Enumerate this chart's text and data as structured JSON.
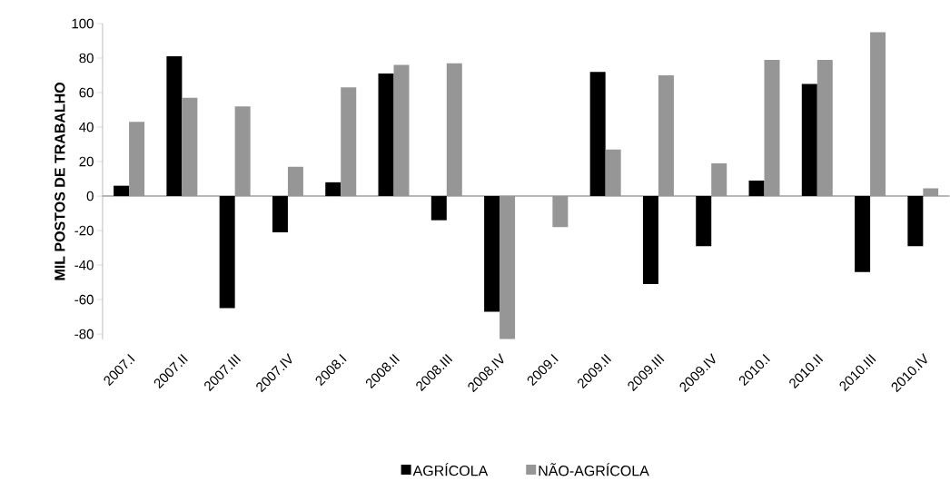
{
  "chart_data": {
    "type": "bar",
    "ylabel": "MIL POSTOS DE TRABALHO",
    "categories": [
      "2007.I",
      "2007.II",
      "2007.III",
      "2007.IV",
      "2008.I",
      "2008.II",
      "2008.III",
      "2008.IV",
      "2009.I",
      "2009.II",
      "2009.III",
      "2009.IV",
      "2010.I",
      "2010.II",
      "2010.III",
      "2010.IV"
    ],
    "series": [
      {
        "name": "AGRÍCOLA",
        "color": "#000000",
        "values": [
          6,
          81,
          -65,
          -21,
          8,
          71,
          -14,
          -67,
          null,
          72,
          -51,
          -29,
          9,
          65,
          -44,
          -29
        ]
      },
      {
        "name": "NÃO-AGRÍCOLA",
        "color": "#969696",
        "values": [
          43,
          57,
          52,
          17,
          63,
          76,
          77,
          -83,
          -18,
          27,
          70,
          19,
          79,
          79,
          95,
          4.5
        ]
      }
    ],
    "ylim": [
      -83,
      100
    ],
    "yticks": [
      -80,
      -60,
      -40,
      -20,
      0,
      20,
      40,
      60,
      80,
      100
    ],
    "legend": "bottom"
  }
}
